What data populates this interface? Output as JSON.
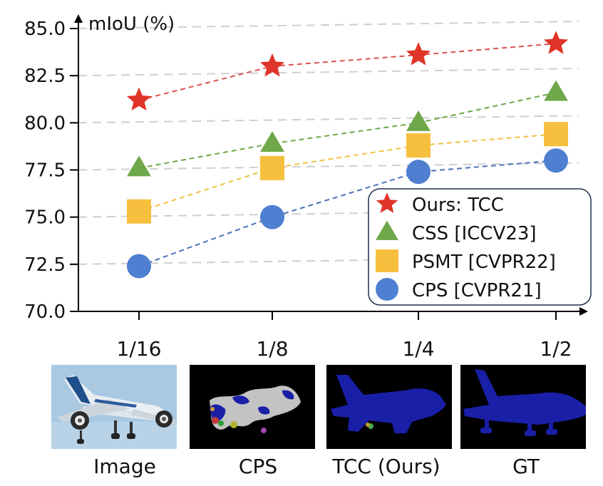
{
  "chart_data": {
    "type": "line",
    "ylabel": "mIoU (%)",
    "categories": [
      "1/16",
      "1/8",
      "1/4",
      "1/2"
    ],
    "ylim": [
      70.0,
      85.0
    ],
    "yticks": [
      "70.0",
      "72.5",
      "75.0",
      "77.5",
      "80.0",
      "82.5",
      "85.0"
    ],
    "grid": true,
    "legend_position": "bottom-right",
    "series": [
      {
        "name": "Ours: TCC",
        "values": [
          81.2,
          83.0,
          83.6,
          84.2
        ],
        "color": "#e03428",
        "line_color": "#d9534f",
        "marker": "star"
      },
      {
        "name": "CSS [ICCV23]",
        "values": [
          77.6,
          78.9,
          80.0,
          81.6
        ],
        "color": "#6fa84a",
        "line_color": "#6fa84a",
        "marker": "triangle"
      },
      {
        "name": "PSMT [CVPR22]",
        "values": [
          75.3,
          77.6,
          78.8,
          79.4
        ],
        "color": "#f6bf3d",
        "line_color": "#f0c040",
        "marker": "square"
      },
      {
        "name": "CPS [CVPR21]",
        "values": [
          72.4,
          75.0,
          77.4,
          78.0
        ],
        "color": "#4e7fd1",
        "line_color": "#4a72b5",
        "marker": "circle"
      }
    ]
  },
  "panels": {
    "captions": [
      "Image",
      "CPS",
      "TCC (Ours)",
      "GT"
    ],
    "colors": {
      "sky": "#aacbe3",
      "background": "#000000",
      "airplane_label": "#1a1fa8",
      "error_gray": "#c0c0c0"
    }
  }
}
